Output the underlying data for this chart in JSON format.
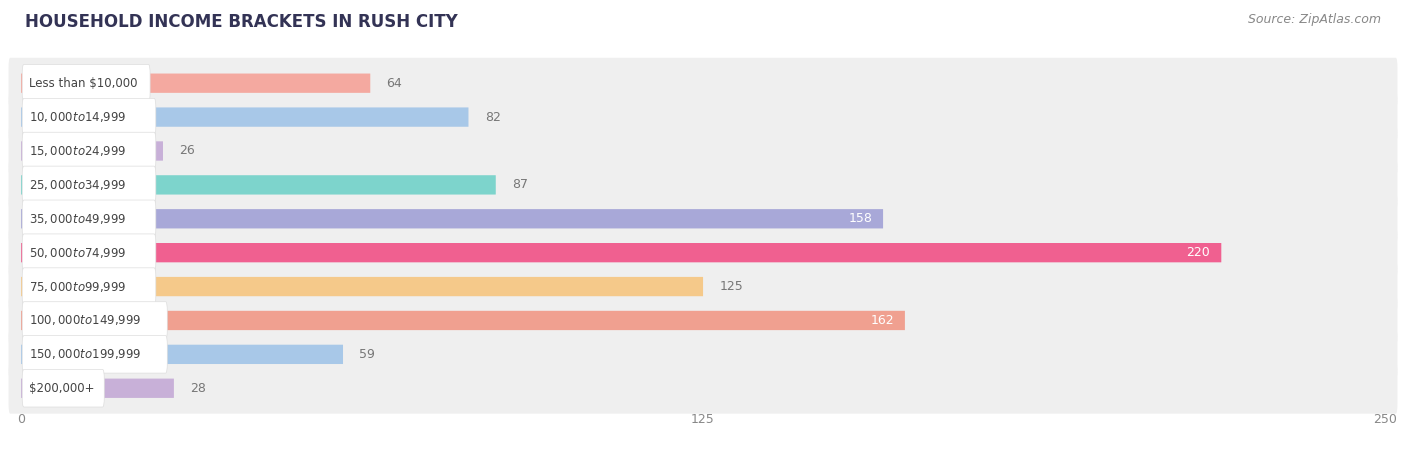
{
  "title": "HOUSEHOLD INCOME BRACKETS IN RUSH CITY",
  "source": "Source: ZipAtlas.com",
  "categories": [
    "Less than $10,000",
    "$10,000 to $14,999",
    "$15,000 to $24,999",
    "$25,000 to $34,999",
    "$35,000 to $49,999",
    "$50,000 to $74,999",
    "$75,000 to $99,999",
    "$100,000 to $149,999",
    "$150,000 to $199,999",
    "$200,000+"
  ],
  "values": [
    64,
    82,
    26,
    87,
    158,
    220,
    125,
    162,
    59,
    28
  ],
  "bar_colors": [
    "#f4a9a0",
    "#a8c8e8",
    "#c8b0d8",
    "#7dd4cc",
    "#a8a8d8",
    "#f06090",
    "#f5c98a",
    "#f0a090",
    "#a8c8e8",
    "#c8b0d8"
  ],
  "xlim": [
    0,
    250
  ],
  "xticks": [
    0,
    125,
    250
  ],
  "bar_height": 0.55,
  "row_bg_color": "#efefef",
  "bar_bg_color": "#ffffff",
  "label_inside_color": "#ffffff",
  "label_outside_color": "#777777",
  "label_inside_threshold": 150,
  "title_fontsize": 12,
  "source_fontsize": 9,
  "value_fontsize": 9,
  "tick_fontsize": 9,
  "category_fontsize": 8.5,
  "background_color": "#ffffff"
}
